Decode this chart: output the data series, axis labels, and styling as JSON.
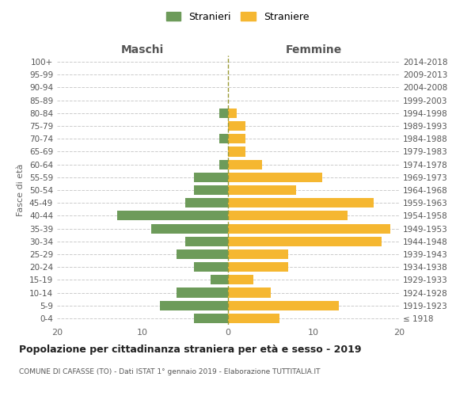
{
  "age_groups": [
    "100+",
    "95-99",
    "90-94",
    "85-89",
    "80-84",
    "75-79",
    "70-74",
    "65-69",
    "60-64",
    "55-59",
    "50-54",
    "45-49",
    "40-44",
    "35-39",
    "30-34",
    "25-29",
    "20-24",
    "15-19",
    "10-14",
    "5-9",
    "0-4"
  ],
  "birth_years": [
    "≤ 1918",
    "1919-1923",
    "1924-1928",
    "1929-1933",
    "1934-1938",
    "1939-1943",
    "1944-1948",
    "1949-1953",
    "1954-1958",
    "1959-1963",
    "1964-1968",
    "1969-1973",
    "1974-1978",
    "1979-1983",
    "1984-1988",
    "1989-1993",
    "1994-1998",
    "1999-2003",
    "2004-2008",
    "2009-2013",
    "2014-2018"
  ],
  "maschi": [
    0,
    0,
    0,
    0,
    1,
    0,
    1,
    0,
    1,
    4,
    4,
    5,
    13,
    9,
    5,
    6,
    4,
    2,
    6,
    8,
    4
  ],
  "femmine": [
    0,
    0,
    0,
    0,
    1,
    2,
    2,
    2,
    4,
    11,
    8,
    17,
    14,
    19,
    18,
    7,
    7,
    3,
    5,
    13,
    6
  ],
  "maschi_color": "#6d9b5a",
  "femmine_color": "#f5b731",
  "background_color": "#ffffff",
  "grid_color": "#cccccc",
  "title": "Popolazione per cittadinanza straniera per età e sesso - 2019",
  "subtitle": "COMUNE DI CAFASSE (TO) - Dati ISTAT 1° gennaio 2019 - Elaborazione TUTTITALIA.IT",
  "ylabel_left": "Fasce di età",
  "xlabel_maschi": "Maschi",
  "xlabel_femmine": "Femmine",
  "legend_maschi": "Stranieri",
  "legend_femmine": "Straniere",
  "xlim": 20,
  "dashed_line_color": "#999933"
}
